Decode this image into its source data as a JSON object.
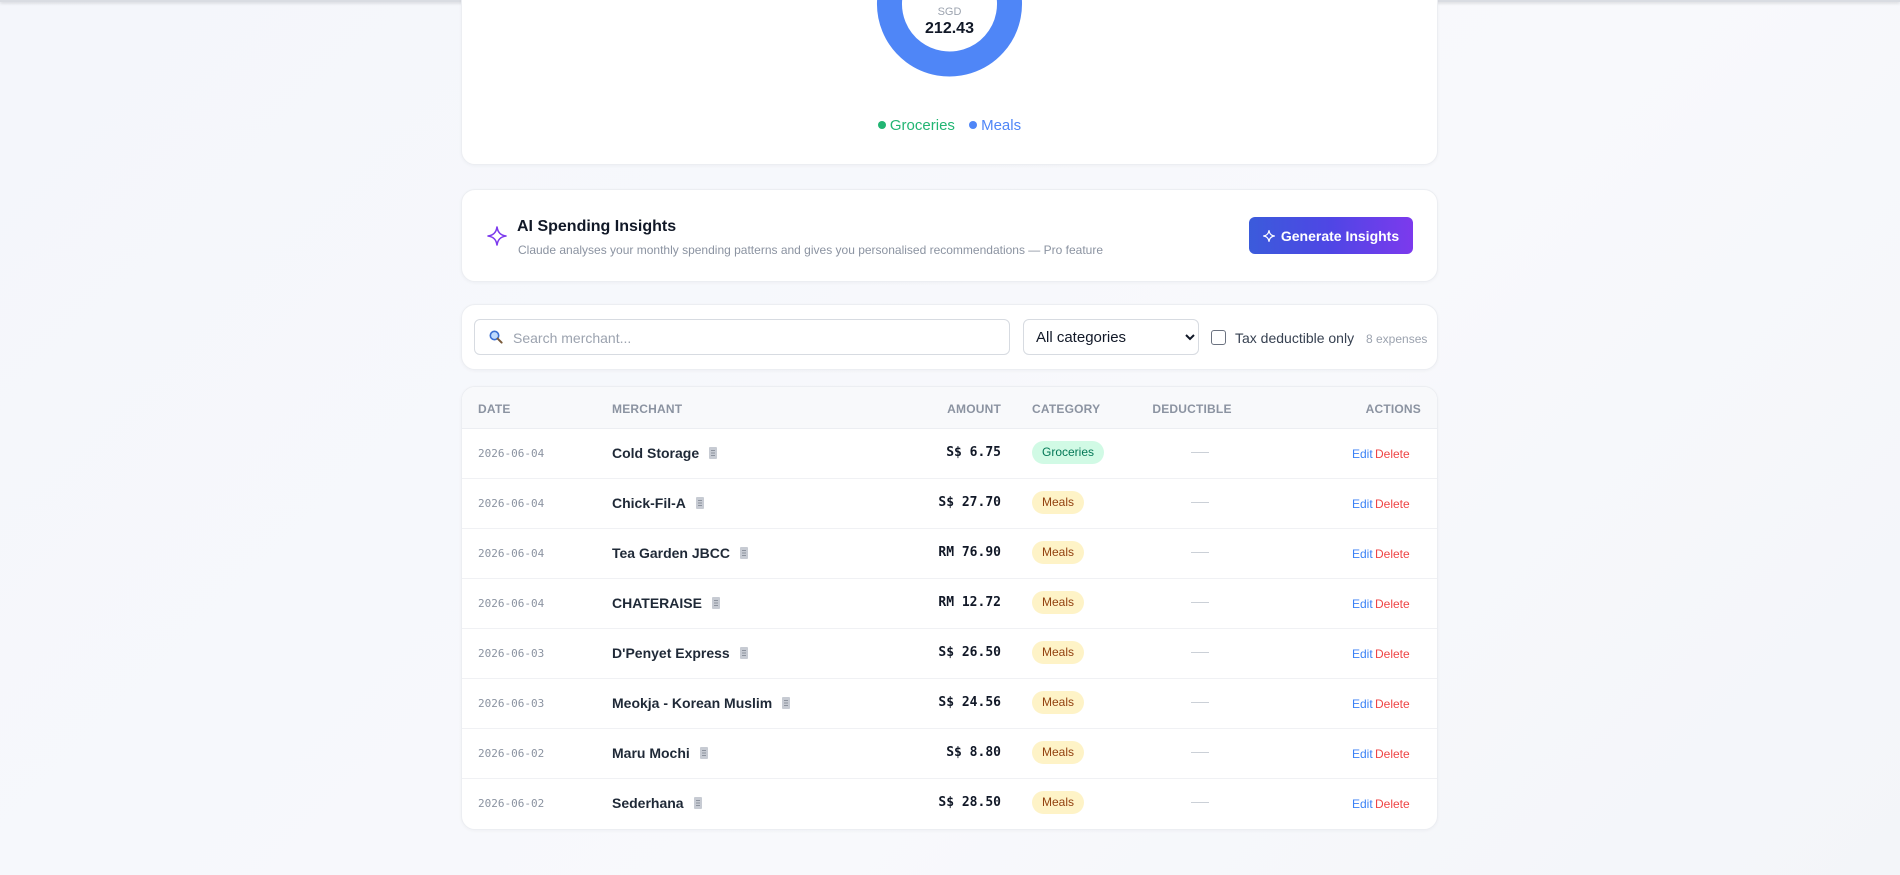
{
  "chart": {
    "currency": "SGD",
    "total": "212.43",
    "legend": [
      {
        "label": "Groceries",
        "color": "#22b573"
      },
      {
        "label": "Meals",
        "color": "#4f86f7"
      }
    ]
  },
  "chart_data": {
    "type": "pie",
    "categories": [
      "Groceries",
      "Meals"
    ],
    "values": [
      6.75,
      205.68
    ],
    "colors": [
      "#22b573",
      "#4f86f7"
    ],
    "center_label": "SGD",
    "center_value": "212.43",
    "legend_position": "bottom"
  },
  "insights": {
    "title": "AI Spending Insights",
    "description": "Claude analyses your monthly spending patterns and gives you personalised recommendations — Pro feature",
    "button_label": "Generate Insights"
  },
  "filters": {
    "search_placeholder": "Search merchant...",
    "category_selected": "All categories",
    "tax_label": "Tax deductible only",
    "count_label": "8 expenses"
  },
  "table": {
    "headers": {
      "date": "DATE",
      "merchant": "MERCHANT",
      "amount": "AMOUNT",
      "category": "CATEGORY",
      "deductible": "DEDUCTIBLE",
      "actions": "ACTIONS"
    },
    "edit_label": "Edit",
    "delete_label": "Delete",
    "rows": [
      {
        "date": "2026-06-04",
        "merchant": "Cold Storage",
        "amount": "S$ 6.75",
        "category": "Groceries"
      },
      {
        "date": "2026-06-04",
        "merchant": "Chick-Fil-A",
        "amount": "S$ 27.70",
        "category": "Meals"
      },
      {
        "date": "2026-06-04",
        "merchant": "Tea Garden JBCC",
        "amount": "RM 76.90",
        "category": "Meals"
      },
      {
        "date": "2026-06-04",
        "merchant": "CHATERAISE",
        "amount": "RM 12.72",
        "category": "Meals"
      },
      {
        "date": "2026-06-03",
        "merchant": "D'Penyet Express",
        "amount": "S$ 26.50",
        "category": "Meals"
      },
      {
        "date": "2026-06-03",
        "merchant": "Meokja - Korean Muslim",
        "amount": "S$ 24.56",
        "category": "Meals"
      },
      {
        "date": "2026-06-02",
        "merchant": "Maru Mochi",
        "amount": "S$ 8.80",
        "category": "Meals"
      },
      {
        "date": "2026-06-02",
        "merchant": "Sederhana",
        "amount": "S$ 28.50",
        "category": "Meals"
      }
    ]
  }
}
